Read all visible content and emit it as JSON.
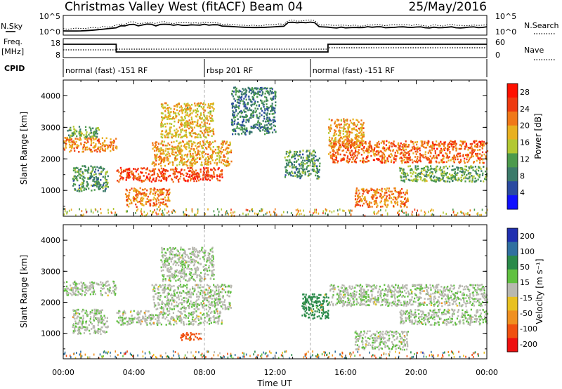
{
  "header": {
    "station": "Christmas Valley West (fitACF)",
    "beam": "Beam 04",
    "date": "25/May/2016"
  },
  "summary_panels": {
    "nsky_label": "N.Sky",
    "nsky_ticks": [
      "10^5",
      "10^0"
    ],
    "nsearch_label": "N.Search",
    "nsearch_ticks": [
      "10^5",
      "10^0"
    ],
    "freq_label": "Freq.",
    "freq_unit": "[MHz]",
    "freq_ticks": [
      "18",
      "8"
    ],
    "nave_label": "Nave",
    "nave_ticks": [
      "60",
      "0"
    ],
    "cpid_label": "CPID",
    "cpid_segments": [
      {
        "label": "normal (fast) -151 RF",
        "start_hour": 0
      },
      {
        "label": "rbsp 201 RF",
        "start_hour": 8
      },
      {
        "label": "normal (fast) -151 RF",
        "start_hour": 14
      }
    ]
  },
  "colors": {
    "power_scale": [
      "#1010ff",
      "#2a4aa0",
      "#3b7a6a",
      "#4c9a4c",
      "#b2c832",
      "#e8b020",
      "#f07818",
      "#ee3a10",
      "#ff1000"
    ],
    "velocity_scale": [
      "#2030b0",
      "#3070a0",
      "#2a8a4a",
      "#60c040",
      "#b8b8b0",
      "#e8c020",
      "#f09020",
      "#f05010",
      "#ee1010"
    ]
  },
  "chart_data": [
    {
      "type": "heatmap",
      "name": "power",
      "ylabel": "Slant Range [km]",
      "yticks": [
        1000,
        2000,
        3000,
        4000
      ],
      "ylim": [
        180,
        4500
      ],
      "xlim": [
        0,
        24
      ],
      "colorbar_label": "Power [dB]",
      "colorbar_ticks": [
        4,
        8,
        12,
        16,
        20,
        24,
        28
      ],
      "colorbar_range": [
        0,
        30
      ],
      "echo_regions": [
        {
          "t0": 0.0,
          "t1": 3.0,
          "r0": 2250,
          "r1": 2700,
          "level": 22
        },
        {
          "t0": 0.2,
          "t1": 2.0,
          "r0": 2700,
          "r1": 3050,
          "level": 12
        },
        {
          "t0": 0.5,
          "t1": 2.5,
          "r0": 1000,
          "r1": 1800,
          "level": 10
        },
        {
          "t0": 3.0,
          "t1": 9.0,
          "r0": 1300,
          "r1": 1750,
          "level": 26
        },
        {
          "t0": 3.5,
          "t1": 6.0,
          "r0": 500,
          "r1": 1100,
          "level": 22
        },
        {
          "t0": 5.0,
          "t1": 9.5,
          "r0": 1800,
          "r1": 2600,
          "level": 20
        },
        {
          "t0": 5.5,
          "t1": 8.5,
          "r0": 2700,
          "r1": 3800,
          "level": 18
        },
        {
          "t0": 9.5,
          "t1": 12.0,
          "r0": 2800,
          "r1": 4300,
          "level": 8
        },
        {
          "t0": 12.5,
          "t1": 14.5,
          "r0": 1400,
          "r1": 2300,
          "level": 10
        },
        {
          "t0": 15.0,
          "t1": 24.0,
          "r0": 1900,
          "r1": 2600,
          "level": 24
        },
        {
          "t0": 15.0,
          "t1": 17.0,
          "r0": 2400,
          "r1": 3300,
          "level": 20
        },
        {
          "t0": 16.5,
          "t1": 19.5,
          "r0": 500,
          "r1": 1100,
          "level": 22
        },
        {
          "t0": 19.0,
          "t1": 24.0,
          "r0": 1300,
          "r1": 1800,
          "level": 12
        }
      ]
    },
    {
      "type": "heatmap",
      "name": "velocity",
      "ylabel": "Slant Range [km]",
      "yticks": [
        1000,
        2000,
        3000,
        4000
      ],
      "ylim": [
        180,
        4500
      ],
      "xlim": [
        0,
        24
      ],
      "colorbar_label": "Velocity [m s⁻¹]",
      "colorbar_ticks": [
        200,
        100,
        50,
        15,
        -15,
        -50,
        -100,
        -200
      ],
      "colorbar_range": [
        -250,
        250
      ],
      "echo_regions": [
        {
          "t0": 0.0,
          "t1": 3.0,
          "r0": 2250,
          "r1": 2700,
          "velocity": 0
        },
        {
          "t0": 0.5,
          "t1": 2.5,
          "r0": 1000,
          "r1": 1800,
          "velocity": 0
        },
        {
          "t0": 3.0,
          "t1": 9.0,
          "r0": 1300,
          "r1": 1750,
          "velocity": 0
        },
        {
          "t0": 5.0,
          "t1": 9.5,
          "r0": 1800,
          "r1": 2600,
          "velocity": 0
        },
        {
          "t0": 5.5,
          "t1": 8.5,
          "r0": 2700,
          "r1": 3800,
          "velocity": 0
        },
        {
          "t0": 6.5,
          "t1": 7.8,
          "r0": 800,
          "r1": 1050,
          "velocity": -100
        },
        {
          "t0": 13.5,
          "t1": 15.0,
          "r0": 1500,
          "r1": 2300,
          "velocity": 60
        },
        {
          "t0": 15.0,
          "t1": 24.0,
          "r0": 1900,
          "r1": 2600,
          "velocity": 0
        },
        {
          "t0": 16.5,
          "t1": 19.5,
          "r0": 500,
          "r1": 1100,
          "velocity": 0
        },
        {
          "t0": 19.0,
          "t1": 24.0,
          "r0": 1300,
          "r1": 1800,
          "velocity": 0
        }
      ]
    }
  ],
  "xaxis": {
    "label": "Time UT",
    "ticks": [
      "00:00",
      "04:00",
      "08:00",
      "12:00",
      "16:00",
      "20:00",
      "00:00"
    ]
  }
}
